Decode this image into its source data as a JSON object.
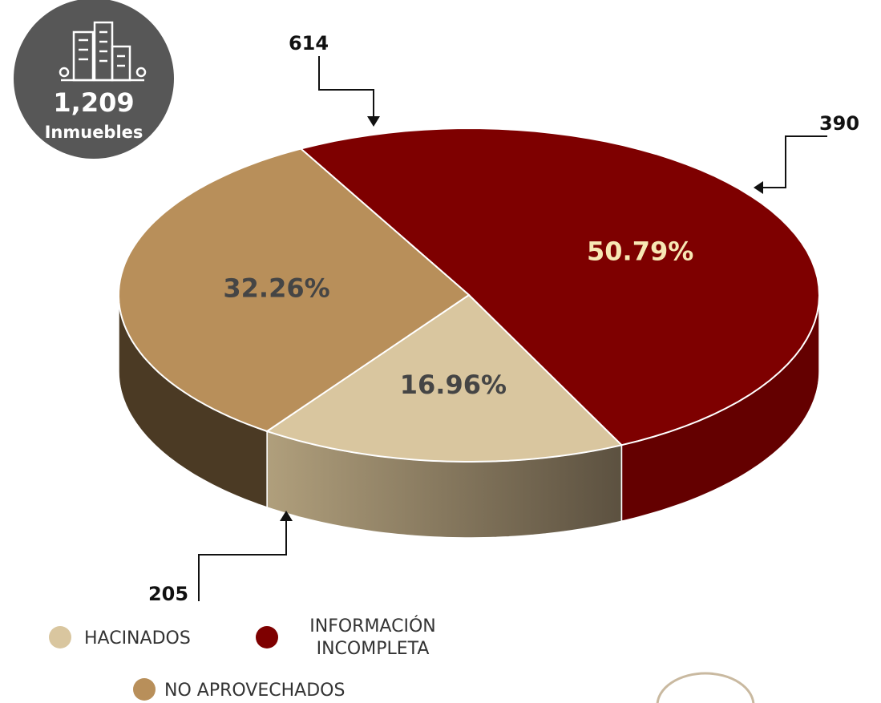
{
  "chart_data": {
    "type": "pie3d",
    "total_label": "1,209",
    "total_unit": "Inmuebles",
    "categories": [
      "HACINADOS",
      "INFORMACIÓN INCOMPLETA",
      "NO APROVECHADOS"
    ],
    "values": [
      16.96,
      50.79,
      32.26
    ],
    "value_labels": [
      "16.96%",
      "50.79%",
      "32.26%"
    ],
    "counts": [
      205,
      614,
      390
    ],
    "colors": [
      "#d9c69f",
      "#7e0000",
      "#b88f5a"
    ],
    "side_colors": [
      "#8a7758",
      "#640000",
      "#4b3a24"
    ],
    "label_colors": [
      "#454545",
      "#f7e7b4",
      "#454545"
    ],
    "legend": true
  }
}
